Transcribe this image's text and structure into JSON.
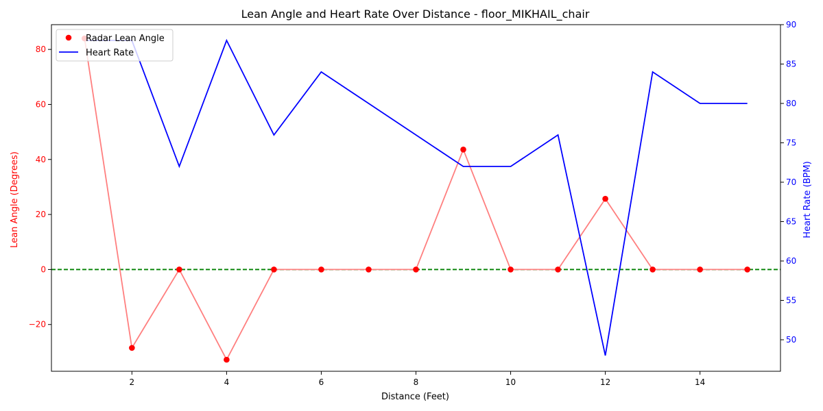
{
  "chart_data": {
    "type": "line",
    "title": "Lean Angle and Heart Rate Over Distance - floor_MIKHAIL_chair",
    "xlabel": "Distance (Feet)",
    "ylabel_left": "Lean Angle (Degrees)",
    "ylabel_right": "Heart Rate (BPM)",
    "xlim": [
      0.3,
      15.7
    ],
    "ylim_left": [
      -37,
      89
    ],
    "ylim_right": [
      46,
      90
    ],
    "x_ticks": [
      2,
      4,
      6,
      8,
      10,
      12,
      14
    ],
    "y_left_ticks": [
      -20,
      0,
      20,
      40,
      60,
      80
    ],
    "y_right_ticks": [
      50,
      55,
      60,
      65,
      70,
      75,
      80,
      85,
      90
    ],
    "x": [
      1,
      2,
      3,
      4,
      5,
      6,
      7,
      8,
      9,
      10,
      11,
      12,
      13,
      14,
      15
    ],
    "series": [
      {
        "name": "Radar Lean Angle",
        "axis": "left",
        "values": [
          84,
          -28.5,
          0,
          -32.8,
          0,
          0,
          0,
          0,
          43.6,
          0,
          0,
          25.7,
          0,
          0,
          0
        ],
        "marker_color": "#ff0000",
        "line_color": "#ff7f7f"
      },
      {
        "name": "Heart Rate",
        "axis": "right",
        "values": [
          88,
          88,
          72,
          88,
          76,
          84,
          80,
          76,
          72,
          72,
          76,
          48,
          84,
          80,
          80
        ],
        "line_color": "#0000ff"
      }
    ],
    "reference_line": {
      "axis": "left",
      "value": 0,
      "color": "#008000",
      "style": "dashed"
    },
    "legend_position": "upper-left",
    "grid": false,
    "left_axis_color": "#ff0000",
    "right_axis_color": "#0000ff"
  }
}
